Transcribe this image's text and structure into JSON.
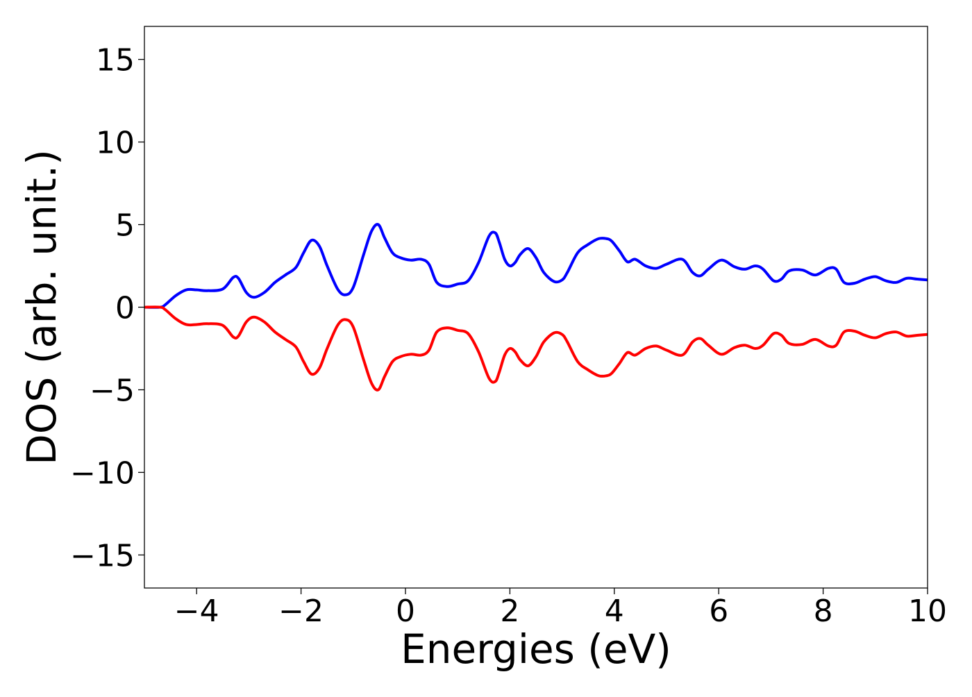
{
  "chart_data": {
    "type": "line",
    "title": "",
    "xlabel": "Energies (eV)",
    "ylabel": "DOS (arb. unit.)",
    "xlim": [
      -5,
      10
    ],
    "ylim": [
      -17,
      17
    ],
    "xticks": [
      -4,
      -2,
      0,
      2,
      4,
      6,
      8,
      10
    ],
    "yticks": [
      -15,
      -10,
      -5,
      0,
      5,
      10,
      15
    ],
    "xtick_labels": [
      "−4",
      "−2",
      "0",
      "2",
      "4",
      "6",
      "8",
      "10"
    ],
    "ytick_labels": [
      "−15",
      "−10",
      "−5",
      "0",
      "5",
      "10",
      "15"
    ],
    "grid": false,
    "legend": "none",
    "series": [
      {
        "color": "#0000ff",
        "x": [
          -5.0,
          -4.7,
          -4.6,
          -4.4,
          -4.2,
          -4.0,
          -3.8,
          -3.5,
          -3.3,
          -3.2,
          -3.05,
          -2.9,
          -2.7,
          -2.5,
          -2.3,
          -2.1,
          -1.95,
          -1.8,
          -1.65,
          -1.5,
          -1.3,
          -1.15,
          -1.0,
          -0.8,
          -0.65,
          -0.52,
          -0.4,
          -0.25,
          -0.1,
          0.1,
          0.3,
          0.45,
          0.6,
          0.8,
          1.0,
          1.2,
          1.4,
          1.6,
          1.72,
          1.8,
          1.9,
          2.0,
          2.1,
          2.2,
          2.35,
          2.5,
          2.65,
          2.85,
          3.0,
          3.1,
          3.3,
          3.5,
          3.7,
          3.85,
          3.95,
          4.1,
          4.25,
          4.4,
          4.6,
          4.8,
          5.0,
          5.3,
          5.5,
          5.65,
          5.8,
          6.05,
          6.3,
          6.5,
          6.7,
          6.85,
          7.05,
          7.2,
          7.35,
          7.6,
          7.85,
          8.1,
          8.25,
          8.4,
          8.6,
          8.8,
          9.0,
          9.2,
          9.4,
          9.6,
          9.8,
          10.0
        ],
        "y": [
          0.0,
          0.0,
          0.15,
          0.7,
          1.05,
          1.05,
          1.0,
          1.1,
          1.8,
          1.75,
          0.9,
          0.6,
          0.9,
          1.5,
          1.95,
          2.4,
          3.3,
          4.05,
          3.7,
          2.5,
          1.1,
          0.75,
          1.2,
          3.2,
          4.6,
          5.0,
          4.2,
          3.3,
          3.0,
          2.85,
          2.9,
          2.6,
          1.5,
          1.25,
          1.4,
          1.6,
          2.7,
          4.3,
          4.5,
          3.9,
          2.9,
          2.5,
          2.7,
          3.2,
          3.55,
          3.0,
          2.1,
          1.55,
          1.65,
          2.1,
          3.3,
          3.8,
          4.15,
          4.15,
          4.0,
          3.4,
          2.75,
          2.9,
          2.5,
          2.35,
          2.6,
          2.9,
          2.1,
          1.9,
          2.3,
          2.85,
          2.45,
          2.3,
          2.5,
          2.3,
          1.6,
          1.7,
          2.2,
          2.25,
          1.95,
          2.35,
          2.3,
          1.5,
          1.45,
          1.7,
          1.85,
          1.6,
          1.5,
          1.75,
          1.7,
          1.65
        ]
      },
      {
        "color": "#ff0000",
        "x": [
          -5.0,
          -4.7,
          -4.6,
          -4.4,
          -4.2,
          -4.0,
          -3.8,
          -3.5,
          -3.3,
          -3.2,
          -3.05,
          -2.9,
          -2.7,
          -2.5,
          -2.3,
          -2.1,
          -1.95,
          -1.8,
          -1.65,
          -1.5,
          -1.3,
          -1.15,
          -1.0,
          -0.8,
          -0.65,
          -0.52,
          -0.4,
          -0.25,
          -0.1,
          0.1,
          0.3,
          0.45,
          0.6,
          0.8,
          1.0,
          1.2,
          1.4,
          1.6,
          1.72,
          1.8,
          1.9,
          2.0,
          2.1,
          2.2,
          2.35,
          2.5,
          2.65,
          2.85,
          3.0,
          3.1,
          3.3,
          3.5,
          3.7,
          3.85,
          3.95,
          4.1,
          4.25,
          4.4,
          4.6,
          4.8,
          5.0,
          5.3,
          5.5,
          5.65,
          5.8,
          6.05,
          6.3,
          6.5,
          6.7,
          6.85,
          7.05,
          7.2,
          7.35,
          7.6,
          7.85,
          8.1,
          8.25,
          8.4,
          8.6,
          8.8,
          9.0,
          9.2,
          9.4,
          9.6,
          9.8,
          10.0
        ],
        "y": [
          0.0,
          0.0,
          -0.15,
          -0.7,
          -1.05,
          -1.05,
          -1.0,
          -1.1,
          -1.8,
          -1.75,
          -0.9,
          -0.6,
          -0.9,
          -1.5,
          -1.95,
          -2.4,
          -3.3,
          -4.05,
          -3.7,
          -2.5,
          -1.1,
          -0.75,
          -1.2,
          -3.2,
          -4.6,
          -5.0,
          -4.2,
          -3.3,
          -3.0,
          -2.85,
          -2.9,
          -2.6,
          -1.5,
          -1.25,
          -1.4,
          -1.6,
          -2.7,
          -4.3,
          -4.5,
          -3.9,
          -2.9,
          -2.5,
          -2.7,
          -3.2,
          -3.55,
          -3.0,
          -2.1,
          -1.55,
          -1.65,
          -2.1,
          -3.3,
          -3.8,
          -4.15,
          -4.15,
          -4.0,
          -3.4,
          -2.75,
          -2.9,
          -2.5,
          -2.35,
          -2.6,
          -2.9,
          -2.1,
          -1.9,
          -2.3,
          -2.85,
          -2.45,
          -2.3,
          -2.5,
          -2.3,
          -1.6,
          -1.7,
          -2.2,
          -2.25,
          -1.95,
          -2.35,
          -2.3,
          -1.5,
          -1.45,
          -1.7,
          -1.85,
          -1.6,
          -1.5,
          -1.75,
          -1.7,
          -1.65
        ]
      }
    ]
  }
}
